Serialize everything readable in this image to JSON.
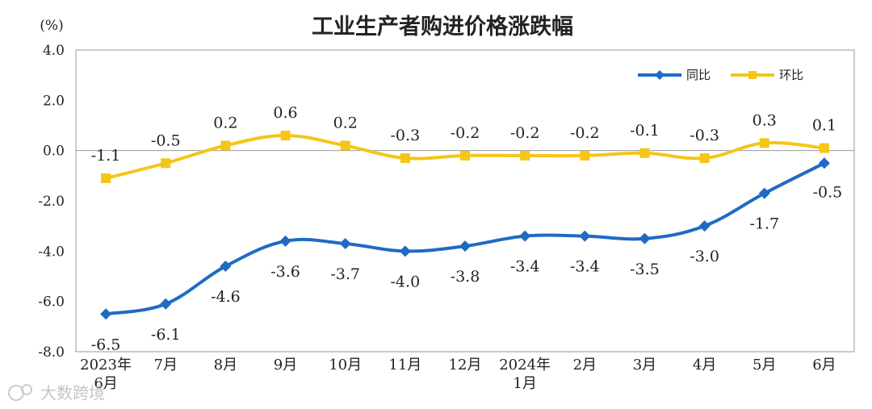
{
  "chart_data": {
    "type": "line",
    "title": "工业生产者购进价格涨跌幅",
    "ylabel": "(%)",
    "ylim": [
      -8.0,
      4.0
    ],
    "yticks": [
      "4.0",
      "2.0",
      "0.0",
      "-2.0",
      "-4.0",
      "-6.0",
      "-8.0"
    ],
    "categories": [
      [
        "2023年",
        "6月"
      ],
      [
        "7月"
      ],
      [
        "8月"
      ],
      [
        "9月"
      ],
      [
        "10月"
      ],
      [
        "11月"
      ],
      [
        "12月"
      ],
      [
        "2024年",
        "1月"
      ],
      [
        "2月"
      ],
      [
        "3月"
      ],
      [
        "4月"
      ],
      [
        "5月"
      ],
      [
        "6月"
      ]
    ],
    "series": [
      {
        "name": "同比",
        "color": "#1f6bc4",
        "marker": "diamond",
        "values": [
          -6.5,
          -6.1,
          -4.6,
          -3.6,
          -3.7,
          -4.0,
          -3.8,
          -3.4,
          -3.4,
          -3.5,
          -3.0,
          -1.7,
          -0.5
        ],
        "labels": [
          "-6.5",
          "-6.1",
          "-4.6",
          "-3.6",
          "-3.7",
          "-4.0",
          "-3.8",
          "-3.4",
          "-3.4",
          "-3.5",
          "-3.0",
          "-1.7",
          "-0.5"
        ]
      },
      {
        "name": "环比",
        "color": "#f5c518",
        "marker": "square",
        "values": [
          -1.1,
          -0.5,
          0.2,
          0.6,
          0.2,
          -0.3,
          -0.2,
          -0.2,
          -0.2,
          -0.1,
          -0.3,
          0.3,
          0.1
        ],
        "labels": [
          "-1.1",
          "-0.5",
          "0.2",
          "0.6",
          "0.2",
          "-0.3",
          "-0.2",
          "-0.2",
          "-0.2",
          "-0.1",
          "-0.3",
          "0.3",
          "0.1"
        ]
      }
    ],
    "legend_position": "top-right",
    "grid": false
  },
  "watermark": "大数跨境"
}
